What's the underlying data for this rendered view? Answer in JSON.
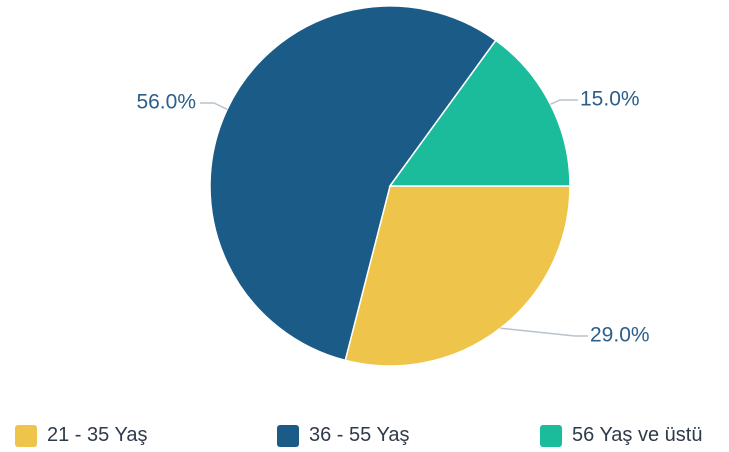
{
  "chart_data": {
    "type": "pie",
    "title": "",
    "categories": [
      "21 - 35 Yaş",
      "36 - 55 Yaş",
      "56 Yaş ve üstü"
    ],
    "values": [
      29.0,
      56.0,
      15.0
    ],
    "value_labels": [
      "29.0%",
      "56.0%",
      "15.0%"
    ],
    "colors": [
      "#EEC54A",
      "#1B5B87",
      "#1ABC9C"
    ],
    "label_color": "#2C5F8A",
    "leader_line_color": "#B8C3CC",
    "legend_position": "bottom",
    "start_angle_deg": 0,
    "direction": "clockwise"
  },
  "legend": {
    "items": [
      {
        "label": "21 - 35 Yaş",
        "color": "#EEC54A"
      },
      {
        "label": "36 - 55 Yaş",
        "color": "#1B5B87"
      },
      {
        "label": "56 Yaş ve üstü",
        "color": "#1ABC9C"
      }
    ]
  }
}
